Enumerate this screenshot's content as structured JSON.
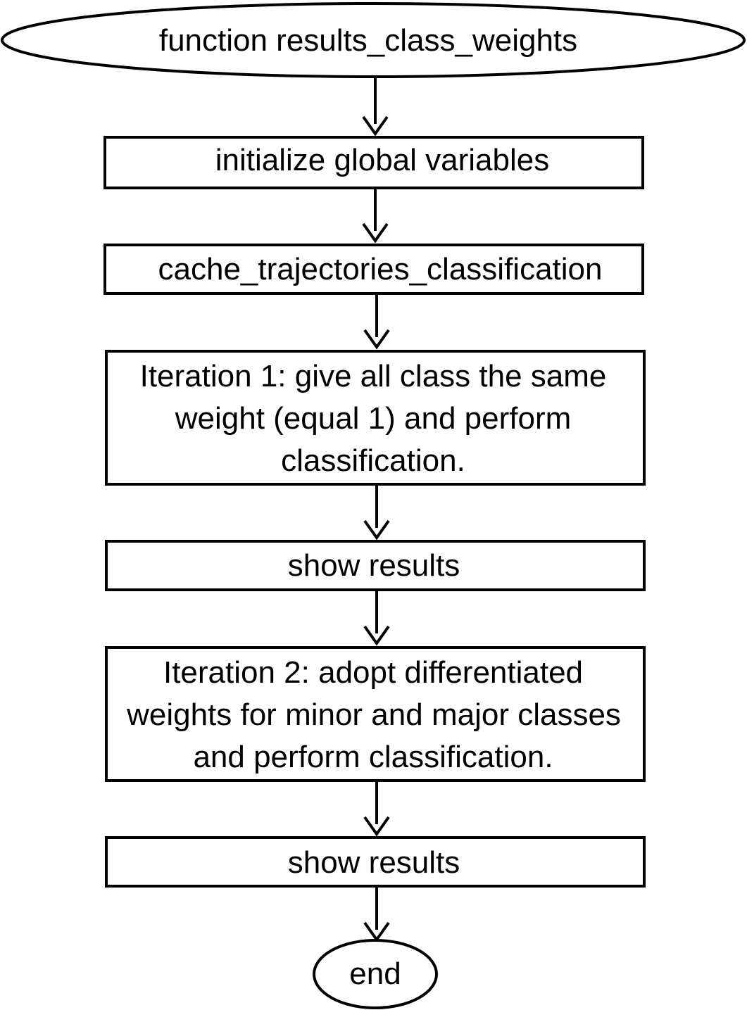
{
  "flowchart": {
    "start": {
      "text": "function results_class_weights"
    },
    "steps": [
      {
        "lines": [
          "initialize global variables"
        ]
      },
      {
        "lines": [
          "cache_trajectories_classification"
        ]
      },
      {
        "lines": [
          "Iteration 1: give all class the same",
          "weight (equal 1) and perform",
          "classification."
        ]
      },
      {
        "lines": [
          "show results"
        ]
      },
      {
        "lines": [
          "Iteration 2: adopt differentiated",
          "weights for minor and major classes",
          "and perform classification."
        ]
      },
      {
        "lines": [
          "show results"
        ]
      }
    ],
    "end": {
      "text": "end"
    }
  }
}
